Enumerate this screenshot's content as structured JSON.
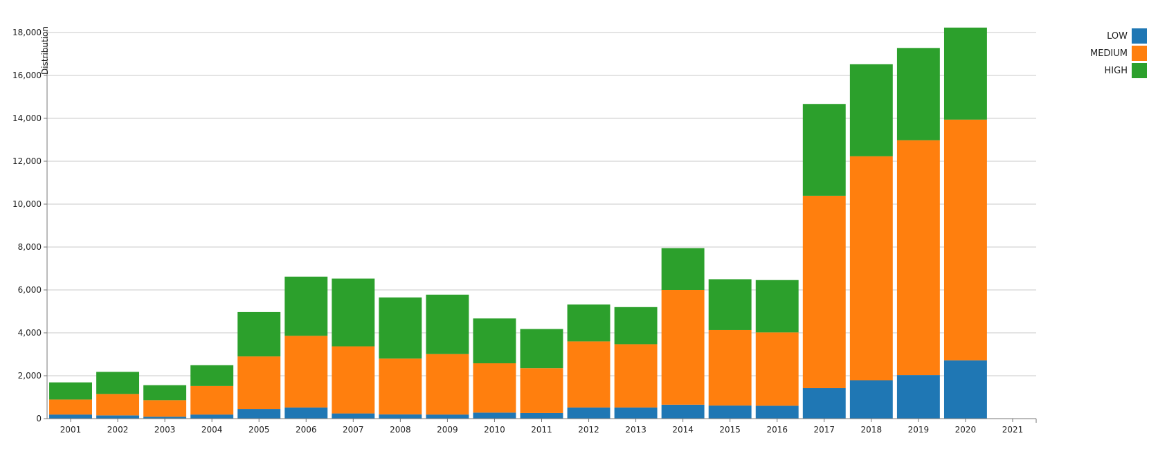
{
  "chart_data": {
    "type": "bar",
    "stacked": true,
    "title": "",
    "xlabel": "",
    "ylabel": "Distribution",
    "categories": [
      "2001",
      "2002",
      "2003",
      "2004",
      "2005",
      "2006",
      "2007",
      "2008",
      "2009",
      "2010",
      "2011",
      "2012",
      "2013",
      "2014",
      "2015",
      "2016",
      "2017",
      "2018",
      "2019",
      "2020",
      "2021"
    ],
    "series": [
      {
        "name": "LOW",
        "color": "#1f77b4",
        "values": [
          190,
          150,
          90,
          190,
          450,
          520,
          240,
          200,
          190,
          280,
          260,
          520,
          520,
          650,
          610,
          600,
          1420,
          1790,
          2030,
          2720,
          0
        ]
      },
      {
        "name": "MEDIUM",
        "color": "#ff7f0e",
        "values": [
          700,
          1000,
          770,
          1330,
          2450,
          3340,
          3130,
          2600,
          2820,
          2300,
          2090,
          3080,
          2950,
          5350,
          3520,
          3420,
          8970,
          10440,
          10950,
          11220,
          0
        ]
      },
      {
        "name": "HIGH",
        "color": "#2ca02c",
        "values": [
          800,
          1030,
          700,
          970,
          2070,
          2760,
          3160,
          2850,
          2770,
          2090,
          1830,
          1720,
          1730,
          1950,
          2370,
          2440,
          4280,
          4290,
          4300,
          4290,
          0
        ]
      }
    ],
    "ylim": [
      0,
      18000
    ],
    "yticks": [
      0,
      2000,
      4000,
      6000,
      8000,
      10000,
      12000,
      14000,
      16000,
      18000
    ],
    "ytick_labels": [
      "0",
      "2,000",
      "4,000",
      "6,000",
      "8,000",
      "10,000",
      "12,000",
      "14,000",
      "16,000",
      "18,000"
    ],
    "grid": true,
    "legend_position": "top-right"
  }
}
